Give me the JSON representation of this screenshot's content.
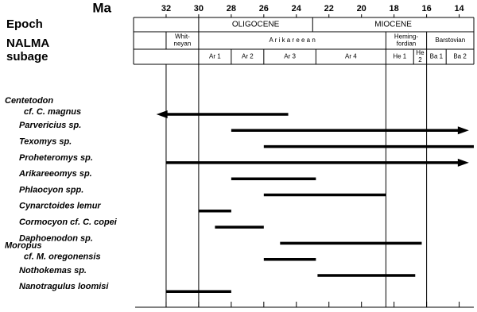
{
  "chart_data": {
    "type": "range",
    "axis_label": "Ma",
    "xlim": [
      34,
      13.1
    ],
    "xticks": [
      32,
      30,
      28,
      26,
      24,
      22,
      20,
      18,
      16,
      14
    ],
    "boundaries": [
      32,
      30,
      18.5,
      16
    ],
    "header_rows": [
      {
        "label": "Epoch",
        "intervals": [
          {
            "name": [
              "OLIGOCENE"
            ],
            "start": 30,
            "end": 23
          },
          {
            "name": [
              "MIOCENE"
            ],
            "start": 23,
            "end": 13.1
          }
        ]
      },
      {
        "label": "NALMA",
        "intervals": [
          {
            "name": [
              "Whit-",
              "neyan"
            ],
            "start": 32,
            "end": 30
          },
          {
            "name": [
              "A r i k a r e e a n"
            ],
            "start": 30,
            "end": 18.5
          },
          {
            "name": [
              "Heming-",
              "fordian"
            ],
            "start": 18.5,
            "end": 16
          },
          {
            "name": [
              "Barstovian"
            ],
            "start": 16,
            "end": 13.1
          }
        ]
      },
      {
        "label": "subage",
        "intervals": [
          {
            "name": [
              "Ar 1"
            ],
            "start": 30,
            "end": 28
          },
          {
            "name": [
              "Ar 2"
            ],
            "start": 28,
            "end": 26
          },
          {
            "name": [
              "Ar 3"
            ],
            "start": 26,
            "end": 22.8
          },
          {
            "name": [
              "Ar 4"
            ],
            "start": 22.8,
            "end": 18.5
          },
          {
            "name": [
              "He 1"
            ],
            "start": 18.5,
            "end": 16.8
          },
          {
            "name": [
              "He",
              "2"
            ],
            "start": 16.8,
            "end": 16
          },
          {
            "name": [
              "Ba 1"
            ],
            "start": 16,
            "end": 14.8
          },
          {
            "name": [
              "Ba 2"
            ],
            "start": 14.8,
            "end": 13.1
          }
        ]
      }
    ],
    "taxa": [
      {
        "label": [
          "Centetodon",
          "cf. C. magnus"
        ],
        "start": 32.6,
        "end": 24.5,
        "arrow": "older"
      },
      {
        "label": [
          "Parvericius  sp."
        ],
        "start": 28,
        "end": 13.4,
        "arrow": "younger"
      },
      {
        "label": [
          "Texomys  sp."
        ],
        "start": 26,
        "end": 13.1
      },
      {
        "label": [
          "Proheteromys  sp."
        ],
        "start": 32,
        "end": 13.4,
        "arrow": "younger"
      },
      {
        "label": [
          "Arikareeomys  sp."
        ],
        "start": 28,
        "end": 22.8
      },
      {
        "label": [
          "Phlaocyon  spp."
        ],
        "start": 26,
        "end": 18.5
      },
      {
        "label": [
          "Cynarctoides lemur"
        ],
        "start": 30,
        "end": 28
      },
      {
        "label": [
          "Cormocyon cf. C. copei"
        ],
        "start": 29,
        "end": 26
      },
      {
        "label": [
          "Daphoenodon  sp."
        ],
        "start": 25,
        "end": 16.3
      },
      {
        "label": [
          "Moropus",
          "cf. M. oregonensis"
        ],
        "start": 26,
        "end": 22.8
      },
      {
        "label": [
          "Nothokemas  sp."
        ],
        "start": 22.7,
        "end": 16.7
      },
      {
        "label": [
          "Nanotragulus loomisi"
        ],
        "start": 32,
        "end": 28
      }
    ]
  }
}
